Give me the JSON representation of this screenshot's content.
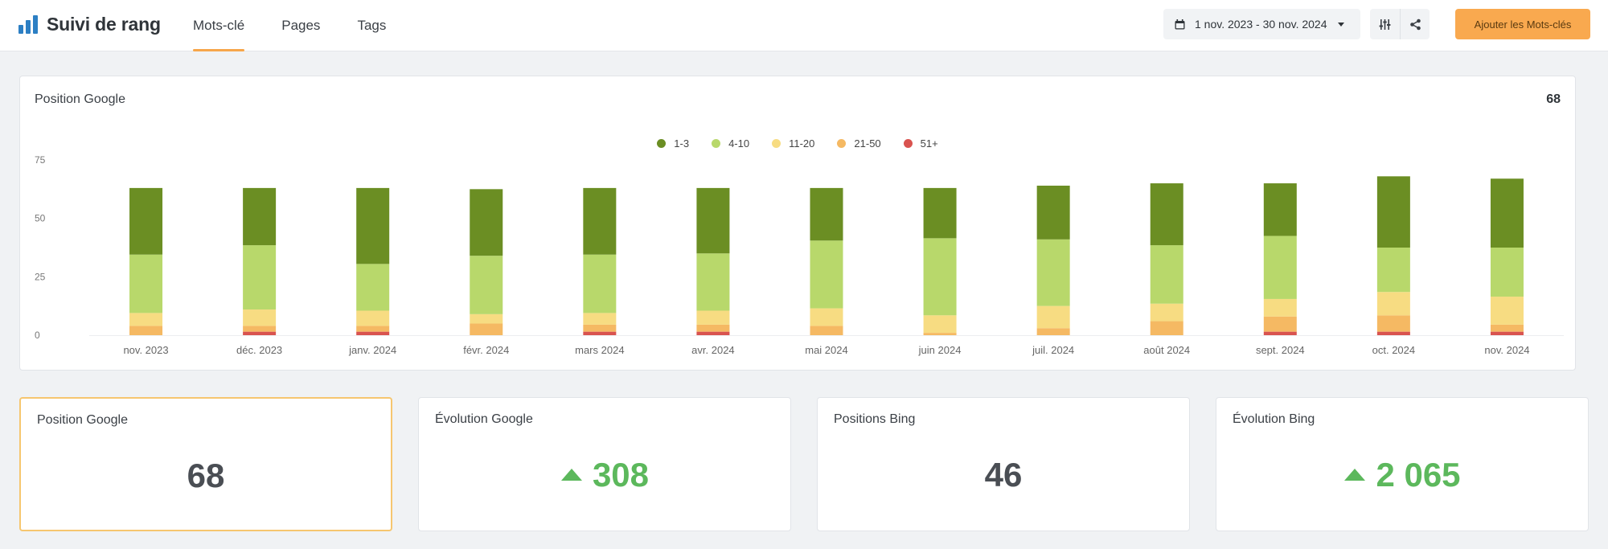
{
  "app": {
    "title": "Suivi de rang",
    "tabs": [
      {
        "label": "Mots-clé",
        "active": true
      },
      {
        "label": "Pages",
        "active": false
      },
      {
        "label": "Tags",
        "active": false
      }
    ],
    "date_range": "1 nov. 2023 - 30 nov. 2024",
    "add_button": "Ajouter les Mots-clés",
    "accent_color": "#f9a94f",
    "brand_color": "#2c7fc4"
  },
  "chart_card": {
    "title": "Position Google",
    "total": "68"
  },
  "chart_data": {
    "type": "bar",
    "stacked": true,
    "categories": [
      "nov. 2023",
      "déc. 2023",
      "janv. 2024",
      "févr. 2024",
      "mars 2024",
      "avr. 2024",
      "mai 2024",
      "juin 2024",
      "juil. 2024",
      "août 2024",
      "sept. 2024",
      "oct. 2024",
      "nov. 2024"
    ],
    "ylim": [
      0,
      75
    ],
    "yticks": [
      0,
      25,
      50,
      75
    ],
    "legend_position": "top-center",
    "grid": false,
    "series": [
      {
        "name": "51+",
        "color": "#d9534f",
        "values": [
          0,
          1.5,
          1.5,
          0,
          1.5,
          1.5,
          0,
          0,
          0,
          0,
          1.5,
          1.5,
          1.5
        ]
      },
      {
        "name": "21-50",
        "color": "#f5b963",
        "values": [
          4,
          2.5,
          2.5,
          5,
          3,
          3,
          4,
          1,
          3,
          6,
          6.5,
          7,
          3
        ]
      },
      {
        "name": "11-20",
        "color": "#f7dc82",
        "values": [
          5.5,
          7,
          6.5,
          4,
          5,
          6,
          7.5,
          7.5,
          9.5,
          7.5,
          7.5,
          10,
          12
        ]
      },
      {
        "name": "4-10",
        "color": "#b8d86b",
        "values": [
          25,
          27.5,
          20,
          25,
          25,
          24.5,
          29,
          33,
          28.5,
          25,
          27,
          19,
          21
        ]
      },
      {
        "name": "1-3",
        "color": "#6b8e23",
        "values": [
          28.5,
          24.5,
          32.5,
          28.5,
          28.5,
          28,
          22.5,
          21.5,
          23,
          26.5,
          22.5,
          30.5,
          29.5
        ]
      }
    ]
  },
  "kpis": [
    {
      "title": "Position Google",
      "value": "68",
      "trend": "none",
      "selected": true
    },
    {
      "title": "Évolution Google",
      "value": "308",
      "trend": "up",
      "selected": false
    },
    {
      "title": "Positions Bing",
      "value": "46",
      "trend": "none",
      "selected": false
    },
    {
      "title": "Évolution Bing",
      "value": "2 065",
      "trend": "up",
      "selected": false
    }
  ]
}
